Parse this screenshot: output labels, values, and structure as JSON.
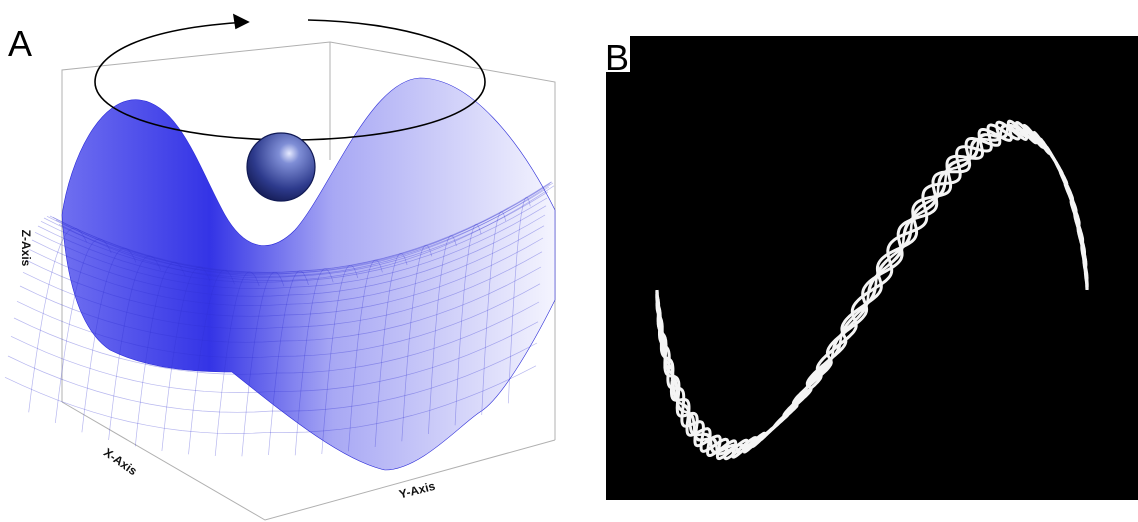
{
  "panels": [
    {
      "label": "A",
      "axes": {
        "z": "Z-Axis",
        "x": "X-Axis",
        "y": "Y-Axis"
      }
    },
    {
      "label": "B"
    }
  ]
}
